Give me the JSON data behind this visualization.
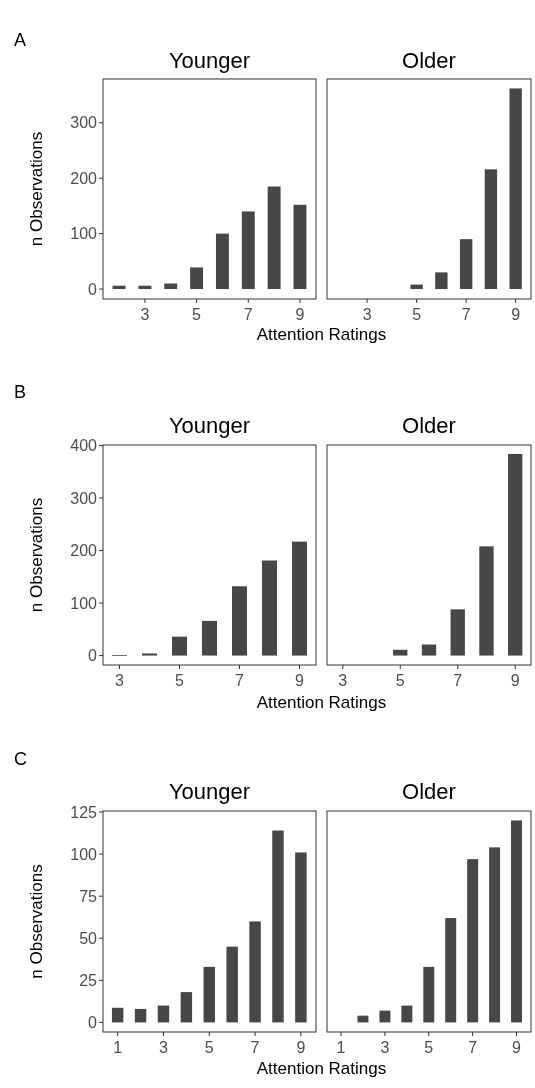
{
  "chart_data": [
    {
      "type": "bar",
      "title": "Younger",
      "xlabel": "Attention Ratings",
      "ylabel": "n Observations",
      "annotations": [
        "A"
      ],
      "x": [
        2,
        3,
        4,
        5,
        6,
        7,
        8,
        9
      ],
      "values": [
        6,
        6,
        10,
        39,
        100,
        140,
        185,
        152
      ],
      "color": "#474747",
      "xlim": [
        1.38,
        9.62
      ],
      "xticks": [
        3,
        5,
        7,
        9
      ],
      "ylim": [
        -18,
        379
      ],
      "yticks": [
        0,
        100,
        200,
        300
      ]
    },
    {
      "type": "bar",
      "title": "Older",
      "x": [
        5,
        6,
        7,
        8,
        9
      ],
      "values": [
        8,
        30,
        90,
        216,
        362
      ],
      "color": "#474747",
      "xlim": [
        1.38,
        9.62
      ],
      "xticks": [
        3,
        5,
        7,
        9
      ],
      "ylim": [
        -18,
        379
      ],
      "tick_labels": "x"
    },
    {
      "type": "bar",
      "title": "Younger",
      "xlabel": "Attention Ratings",
      "ylabel": "n Observations",
      "annotations": [
        "B"
      ],
      "x": [
        3,
        4,
        5,
        6,
        7,
        8,
        9
      ],
      "values": [
        1,
        4,
        36,
        66,
        132,
        181,
        217
      ],
      "color": "#474747",
      "xlim": [
        2.45,
        9.55
      ],
      "xticks": [
        3,
        5,
        7,
        9
      ],
      "ylim": [
        -18,
        401
      ],
      "yticks": [
        0,
        100,
        200,
        300,
        400
      ]
    },
    {
      "type": "bar",
      "title": "Older",
      "x": [
        5,
        6,
        7,
        8,
        9
      ],
      "values": [
        11,
        21,
        88,
        208,
        384
      ],
      "color": "#474747",
      "xlim": [
        2.45,
        9.55
      ],
      "xticks": [
        3,
        5,
        7,
        9
      ],
      "ylim": [
        -18,
        401
      ],
      "tick_labels": "x"
    },
    {
      "type": "bar",
      "title": "Younger",
      "xlabel": "Attention Ratings",
      "ylabel": "n Observations",
      "annotations": [
        "C"
      ],
      "x": [
        1,
        2,
        3,
        4,
        5,
        6,
        7,
        8,
        9
      ],
      "values": [
        8.7,
        8,
        10,
        18,
        33,
        45,
        60,
        114,
        101
      ],
      "color": "#474747",
      "xlim": [
        0.36,
        9.66
      ],
      "xticks": [
        1,
        3,
        5,
        7,
        9
      ],
      "ylim": [
        -5.7,
        125.6
      ],
      "yticks": [
        0,
        25,
        50,
        75,
        100,
        125
      ]
    },
    {
      "type": "bar",
      "title": "Older",
      "x": [
        2,
        3,
        4,
        5,
        6,
        7,
        8,
        9
      ],
      "values": [
        4,
        7,
        10,
        33,
        62,
        97,
        104,
        120
      ],
      "color": "#474747",
      "xlim": [
        0.36,
        9.66
      ],
      "xticks": [
        1,
        3,
        5,
        7,
        9
      ],
      "ylim": [
        -5.7,
        125.6
      ],
      "tick_labels": "x"
    }
  ]
}
